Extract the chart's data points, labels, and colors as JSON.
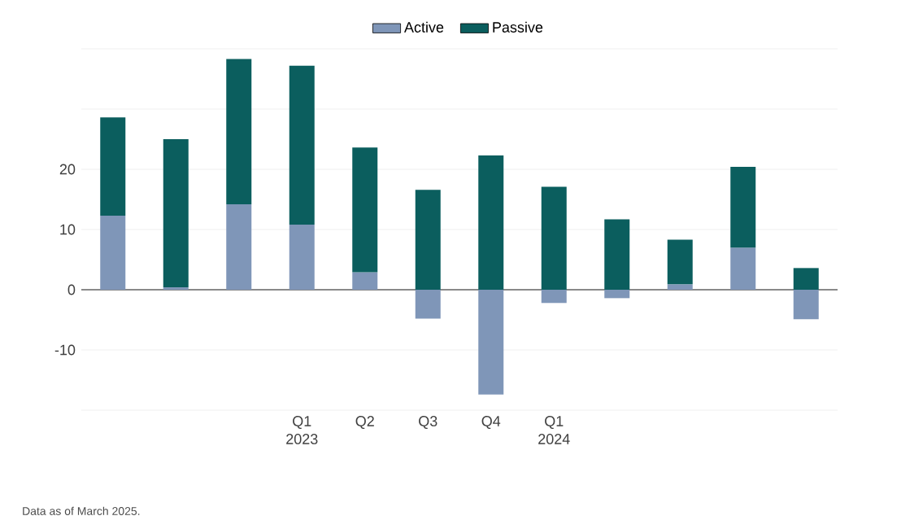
{
  "chart_data": {
    "type": "bar",
    "stacked": true,
    "categories": [
      null,
      null,
      null,
      "Q1 2023",
      "Q2",
      "Q3",
      "Q4",
      "Q1 2024",
      null,
      null,
      null,
      null
    ],
    "series": [
      {
        "name": "Active",
        "color": "#7f96b8",
        "values": [
          12.3,
          0.4,
          14.2,
          10.8,
          2.9,
          -4.8,
          -17.4,
          -2.2,
          -1.4,
          0.9,
          7.0,
          -4.9
        ]
      },
      {
        "name": "Passive",
        "color": "#0b5e5e",
        "values": [
          16.3,
          24.6,
          24.1,
          26.4,
          20.7,
          16.6,
          22.3,
          17.1,
          11.7,
          7.4,
          13.4,
          3.6
        ]
      }
    ],
    "ylim": [
      -20,
      40
    ],
    "yticks": [
      {
        "value": -20,
        "label": null
      },
      -10,
      0,
      10,
      20,
      {
        "value": 30,
        "label": null
      },
      {
        "value": 40,
        "label": null
      }
    ],
    "grid": "y",
    "legend": "top",
    "annotations": [
      "Data as of March 2025."
    ]
  }
}
